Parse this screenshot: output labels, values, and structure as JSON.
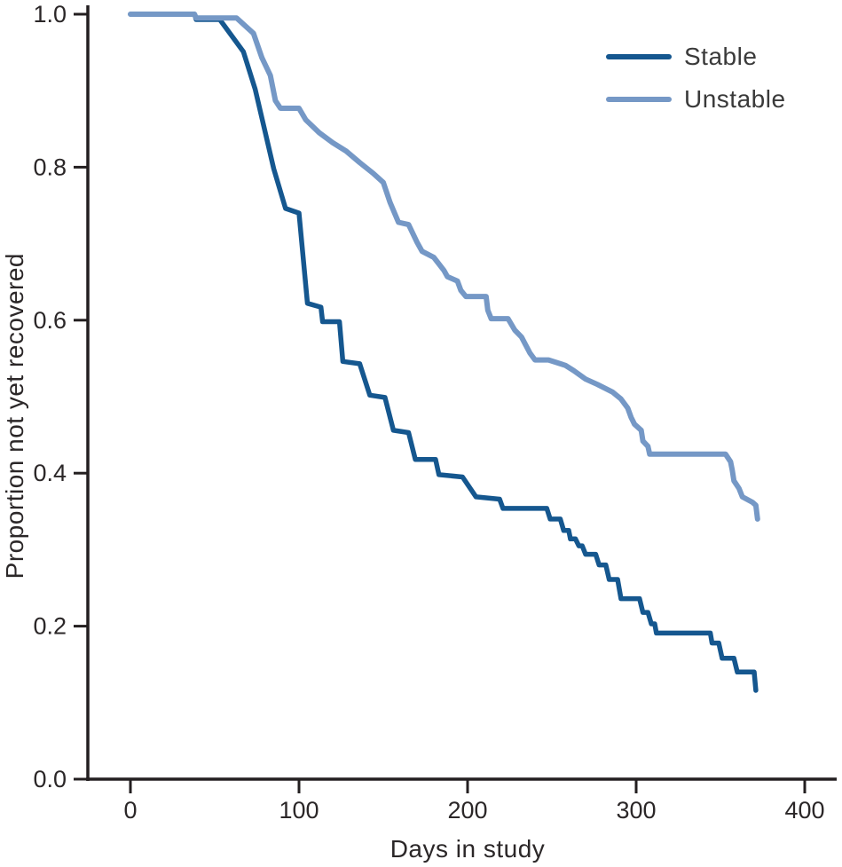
{
  "figure": {
    "xlabel": "Days in study",
    "ylabel": "Proportion not yet recovered"
  },
  "legend": {
    "items": [
      {
        "label": "Stable",
        "color": "#15578f"
      },
      {
        "label": "Unstable",
        "color": "#7598c6"
      }
    ]
  },
  "colors": {
    "axis_ink": "#231f20",
    "tick_text": "#2b2728",
    "stable_line": "#15578f",
    "unstable_line": "#7598c6"
  },
  "chart_data": {
    "type": "line",
    "subtype": "kaplan-meier-survival",
    "title": "",
    "xlabel": "Days in study",
    "ylabel": "Proportion not yet recovered",
    "xlim": [
      0,
      400
    ],
    "ylim": [
      0.0,
      1.0
    ],
    "x_ticks": [
      0,
      100,
      200,
      300,
      400
    ],
    "x_tick_labels": [
      "0",
      "100",
      "200",
      "300",
      "400"
    ],
    "y_ticks": [
      0.0,
      0.2,
      0.4,
      0.6,
      0.8,
      1.0
    ],
    "y_tick_labels": [
      "0.0",
      "0.2",
      "0.4",
      "0.6",
      "0.8",
      "1.0"
    ],
    "grid": false,
    "legend_position": "top-right",
    "series": [
      {
        "name": "Stable",
        "color": "#15578f",
        "stroke_width": 5.5,
        "points": [
          [
            0,
            1.0
          ],
          [
            38,
            1.0
          ],
          [
            39,
            0.993
          ],
          [
            53,
            0.993
          ],
          [
            67,
            0.951
          ],
          [
            74,
            0.902
          ],
          [
            85,
            0.798
          ],
          [
            92,
            0.746
          ],
          [
            100,
            0.74
          ],
          [
            105,
            0.622
          ],
          [
            113,
            0.617
          ],
          [
            114,
            0.598
          ],
          [
            124,
            0.598
          ],
          [
            126,
            0.546
          ],
          [
            136,
            0.543
          ],
          [
            142,
            0.502
          ],
          [
            151,
            0.499
          ],
          [
            156,
            0.456
          ],
          [
            165,
            0.453
          ],
          [
            169,
            0.418
          ],
          [
            181,
            0.418
          ],
          [
            183,
            0.398
          ],
          [
            197,
            0.395
          ],
          [
            205,
            0.369
          ],
          [
            219,
            0.366
          ],
          [
            221,
            0.354
          ],
          [
            247,
            0.354
          ],
          [
            249,
            0.34
          ],
          [
            255,
            0.34
          ],
          [
            257,
            0.325
          ],
          [
            260,
            0.325
          ],
          [
            261,
            0.314
          ],
          [
            264,
            0.314
          ],
          [
            266,
            0.305
          ],
          [
            268,
            0.305
          ],
          [
            270,
            0.294
          ],
          [
            276,
            0.294
          ],
          [
            278,
            0.28
          ],
          [
            282,
            0.28
          ],
          [
            284,
            0.261
          ],
          [
            289,
            0.261
          ],
          [
            291,
            0.236
          ],
          [
            302,
            0.236
          ],
          [
            304,
            0.218
          ],
          [
            307,
            0.218
          ],
          [
            309,
            0.203
          ],
          [
            311,
            0.203
          ],
          [
            312,
            0.191
          ],
          [
            344,
            0.191
          ],
          [
            345,
            0.178
          ],
          [
            349,
            0.178
          ],
          [
            351,
            0.158
          ],
          [
            358,
            0.158
          ],
          [
            360,
            0.14
          ],
          [
            370,
            0.14
          ],
          [
            371,
            0.116
          ]
        ]
      },
      {
        "name": "Unstable",
        "color": "#7598c6",
        "stroke_width": 6,
        "points": [
          [
            0,
            1.0
          ],
          [
            38,
            1.0
          ],
          [
            39,
            0.995
          ],
          [
            63,
            0.995
          ],
          [
            73,
            0.975
          ],
          [
            78,
            0.943
          ],
          [
            83,
            0.92
          ],
          [
            86,
            0.887
          ],
          [
            89,
            0.877
          ],
          [
            100,
            0.877
          ],
          [
            104,
            0.862
          ],
          [
            112,
            0.845
          ],
          [
            120,
            0.832
          ],
          [
            128,
            0.821
          ],
          [
            136,
            0.806
          ],
          [
            144,
            0.792
          ],
          [
            150,
            0.78
          ],
          [
            154,
            0.754
          ],
          [
            159,
            0.728
          ],
          [
            165,
            0.725
          ],
          [
            170,
            0.702
          ],
          [
            173,
            0.69
          ],
          [
            180,
            0.682
          ],
          [
            186,
            0.665
          ],
          [
            188,
            0.657
          ],
          [
            194,
            0.651
          ],
          [
            196,
            0.639
          ],
          [
            199,
            0.631
          ],
          [
            211,
            0.631
          ],
          [
            212,
            0.613
          ],
          [
            214,
            0.602
          ],
          [
            224,
            0.602
          ],
          [
            228,
            0.587
          ],
          [
            232,
            0.578
          ],
          [
            237,
            0.557
          ],
          [
            240,
            0.548
          ],
          [
            248,
            0.548
          ],
          [
            258,
            0.541
          ],
          [
            263,
            0.534
          ],
          [
            270,
            0.523
          ],
          [
            277,
            0.516
          ],
          [
            286,
            0.506
          ],
          [
            291,
            0.497
          ],
          [
            295,
            0.485
          ],
          [
            297,
            0.473
          ],
          [
            299,
            0.464
          ],
          [
            303,
            0.456
          ],
          [
            304,
            0.442
          ],
          [
            307,
            0.435
          ],
          [
            308,
            0.425
          ],
          [
            353,
            0.425
          ],
          [
            356,
            0.415
          ],
          [
            357,
            0.404
          ],
          [
            358,
            0.39
          ],
          [
            361,
            0.38
          ],
          [
            363,
            0.369
          ],
          [
            369,
            0.362
          ],
          [
            371,
            0.358
          ],
          [
            372,
            0.34
          ]
        ]
      }
    ]
  }
}
